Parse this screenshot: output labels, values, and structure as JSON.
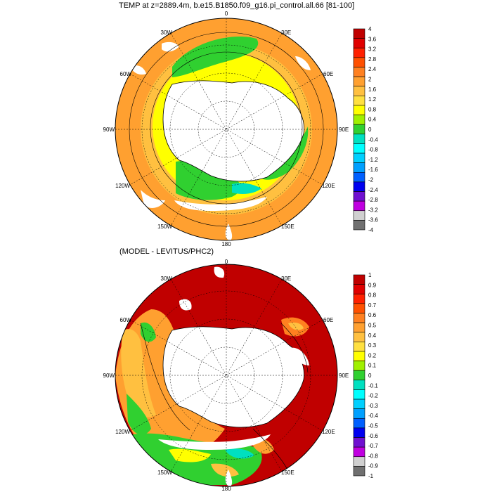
{
  "panel_top": {
    "title": "TEMP at z=2889.4m, b.e15.B1850.f09_g16.pi_control.all.66 [81-100]",
    "lon_labels": [
      "0",
      "30E",
      "60E",
      "90E",
      "120E",
      "150E",
      "180",
      "150W",
      "120W",
      "90W",
      "60W",
      "30W"
    ],
    "colorbar_labels": [
      "4",
      "3.6",
      "3.2",
      "2.8",
      "2.4",
      "2",
      "1.6",
      "1.2",
      "0.8",
      "0.4",
      "0",
      "-0.4",
      "-0.8",
      "-1.2",
      "-1.6",
      "-2",
      "-2.4",
      "-2.8",
      "-3.2",
      "-3.6",
      "-4"
    ],
    "colorbar_colors": [
      "#c00000",
      "#e00000",
      "#ff2000",
      "#ff5000",
      "#ff8020",
      "#ffa030",
      "#ffc040",
      "#ffe040",
      "#ffff00",
      "#a0f000",
      "#30d030",
      "#00e0c0",
      "#00ffff",
      "#00d0ff",
      "#00a0ff",
      "#0060ff",
      "#0000f0",
      "#7010d0",
      "#c000e0",
      "#d0d0d0",
      "#707070"
    ]
  },
  "panel_bottom": {
    "title": "(MODEL - LEVITUS/PHC2)",
    "lon_labels": [
      "0",
      "30E",
      "60E",
      "90E",
      "120E",
      "150E",
      "180",
      "150W",
      "120W",
      "90W",
      "60W",
      "30W"
    ],
    "colorbar_labels": [
      "1",
      "0.9",
      "0.8",
      "0.7",
      "0.6",
      "0.5",
      "0.4",
      "0.3",
      "0.2",
      "0.1",
      "0",
      "-0.1",
      "-0.2",
      "-0.3",
      "-0.4",
      "-0.5",
      "-0.6",
      "-0.7",
      "-0.8",
      "-0.9",
      "-1"
    ],
    "colorbar_colors": [
      "#c00000",
      "#e00000",
      "#ff2000",
      "#ff5000",
      "#ff8020",
      "#ffa030",
      "#ffc040",
      "#ffe040",
      "#ffff00",
      "#a0f000",
      "#30d030",
      "#00e0c0",
      "#00ffff",
      "#00d0ff",
      "#00a0ff",
      "#0060ff",
      "#0000f0",
      "#7010d0",
      "#c000e0",
      "#d0d0d0",
      "#707070"
    ]
  },
  "colors": {
    "land": "#ffffff",
    "coastline": "#000000",
    "grid": "#000000"
  }
}
